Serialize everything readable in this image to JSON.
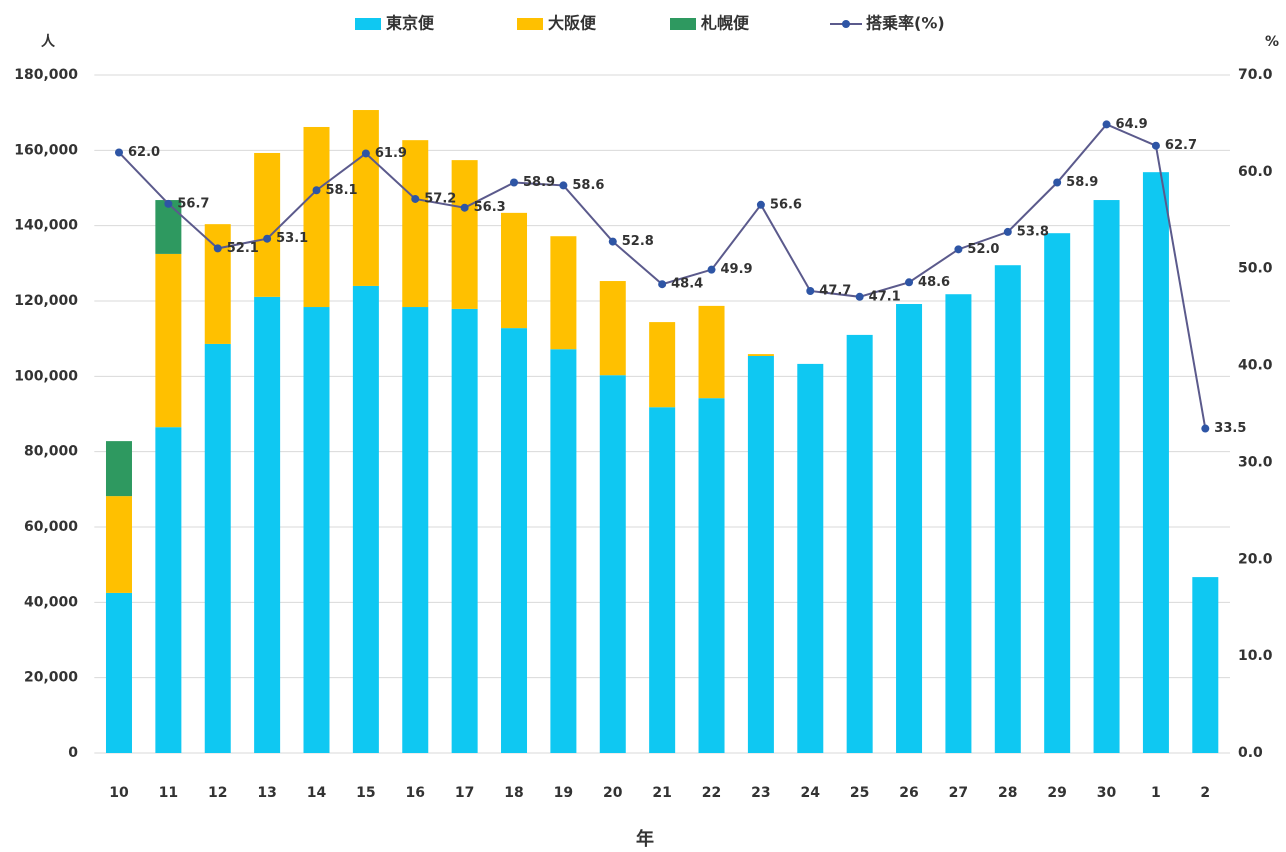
{
  "chart_data": {
    "type": "bar",
    "y_label": "人",
    "y2_label": "%",
    "x_label": "年",
    "categories": [
      "10",
      "11",
      "12",
      "13",
      "14",
      "15",
      "16",
      "17",
      "18",
      "19",
      "20",
      "21",
      "22",
      "23",
      "24",
      "25",
      "26",
      "27",
      "28",
      "29",
      "30",
      "1",
      "2"
    ],
    "series": [
      {
        "name": "東京便",
        "color": "#0fc8f2",
        "values": [
          42500,
          86500,
          108600,
          121100,
          118400,
          124000,
          118400,
          117900,
          112800,
          107200,
          100300,
          91800,
          94200,
          105400,
          103300,
          111000,
          119200,
          121800,
          129500,
          138000,
          146800,
          154200,
          46700
        ]
      },
      {
        "name": "大阪便",
        "color": "#ffc000",
        "values": [
          25700,
          46000,
          31800,
          38200,
          47800,
          46700,
          44300,
          39500,
          30600,
          30000,
          25000,
          22600,
          24500,
          500,
          null,
          null,
          null,
          null,
          null,
          null,
          null,
          null,
          null
        ]
      },
      {
        "name": "札幌便",
        "color": "#2e9960",
        "values": [
          14600,
          14300,
          null,
          null,
          null,
          null,
          null,
          null,
          null,
          null,
          null,
          null,
          null,
          null,
          null,
          null,
          null,
          null,
          null,
          null,
          null,
          null,
          null
        ]
      },
      {
        "name": "搭乗率(%)",
        "type": "line",
        "axis": "y2",
        "color": "#5b5a8c",
        "marker_color": "#2e55a5",
        "values": [
          62.0,
          56.7,
          52.1,
          53.1,
          58.1,
          61.9,
          57.2,
          56.3,
          58.9,
          58.6,
          52.8,
          48.4,
          49.9,
          56.6,
          47.7,
          47.1,
          48.6,
          52.0,
          53.8,
          58.9,
          64.9,
          62.7,
          33.5
        ],
        "value_labels": [
          "62.0",
          "56.7",
          "52.1",
          "53.1",
          "58.1",
          "61.9",
          "57.2",
          "56.3",
          "58.9",
          "58.6",
          "52.8",
          "48.4",
          "49.9",
          "56.6",
          "47.7",
          "47.1",
          "48.6",
          "52.0",
          "53.8",
          "58.9",
          "64.9",
          "62.7",
          "33.5"
        ]
      }
    ],
    "ylim": [
      0,
      180000
    ],
    "yticks": [
      0,
      {
        "value": 20000,
        "label": "20,000"
      },
      {
        "value": 40000,
        "label": "40,000"
      },
      {
        "value": 60000,
        "label": "60,000"
      },
      {
        "value": 80000,
        "label": "80,000"
      },
      {
        "value": 100000,
        "label": "100,000"
      },
      {
        "value": 120000,
        "label": "120,000"
      },
      {
        "value": 140000,
        "label": "140,000"
      },
      {
        "value": 160000,
        "label": "160,000"
      },
      {
        "value": 180000,
        "label": "180,000"
      }
    ],
    "y2lim": [
      0,
      70
    ],
    "y2ticks": [
      {
        "value": 0,
        "label": "0.0"
      },
      {
        "value": 10,
        "label": "10.0"
      },
      {
        "value": 20,
        "label": "20.0"
      },
      {
        "value": 30,
        "label": "30.0"
      },
      {
        "value": 40,
        "label": "40.0"
      },
      {
        "value": 50,
        "label": "50.0"
      },
      {
        "value": 60,
        "label": "60.0"
      },
      {
        "value": 70,
        "label": "70.0"
      }
    ],
    "grid": true,
    "legend": "top"
  }
}
